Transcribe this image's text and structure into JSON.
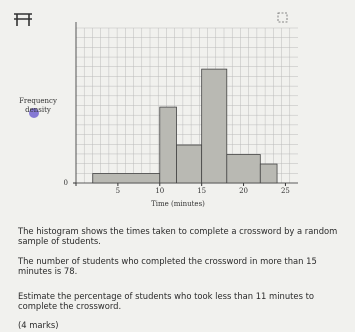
{
  "chart_data": {
    "type": "histogram",
    "xlabel": "Time (minutes)",
    "ylabel": "Frequency density",
    "bins": [
      2,
      10,
      12,
      15,
      18,
      22,
      24
    ],
    "values": [
      1.5,
      12,
      6,
      18,
      4.5,
      3
    ],
    "color": "#b9b9b3",
    "xlim": [
      0,
      26.5
    ],
    "ylim": [
      0,
      24.5
    ],
    "xticks": [
      0,
      5,
      10,
      15,
      20,
      25
    ],
    "yticks": [
      0
    ],
    "grid": true
  },
  "question": {
    "intro": "The histogram shows the times taken to complete a crossword by a random sample of students.",
    "given": "The number of students who completed the crossword in more than 15 minutes is 78.",
    "task": "Estimate the percentage of students who took less than 11 minutes to complete the crossword.",
    "marks": "(4 marks)"
  }
}
